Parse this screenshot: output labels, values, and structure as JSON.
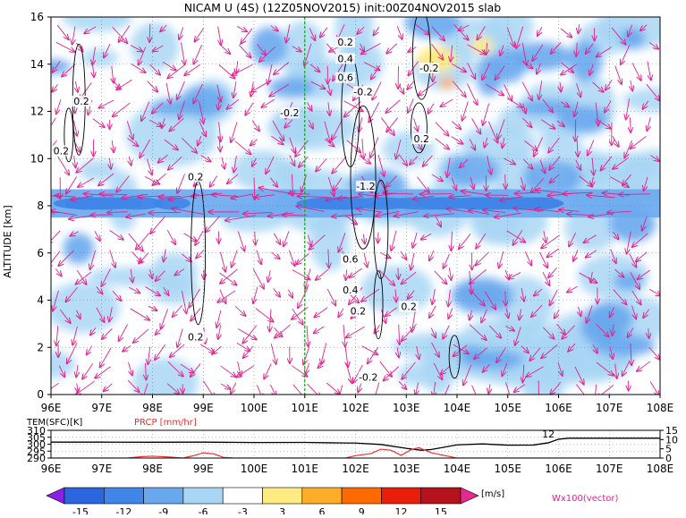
{
  "title": "NICAM U (4S) (12Z05NOV2015) init:00Z04NOV2015 slab",
  "chart_data": [
    {
      "type": "heatmap",
      "title": "NICAM U (4S) (12Z05NOV2015) init:00Z04NOV2015 slab",
      "xlabel": "",
      "ylabel": "ALTITUDE [km]",
      "x_ticks": [
        "96E",
        "97E",
        "98E",
        "99E",
        "100E",
        "101E",
        "102E",
        "103E",
        "104E",
        "105E",
        "106E",
        "107E",
        "108E"
      ],
      "x_values": [
        96,
        97,
        98,
        99,
        100,
        101,
        102,
        103,
        104,
        105,
        106,
        107,
        108
      ],
      "y_ticks": [
        "0",
        "2",
        "4",
        "6",
        "8",
        "10",
        "12",
        "14",
        "16"
      ],
      "y_values": [
        0,
        2,
        4,
        6,
        8,
        10,
        12,
        14,
        16
      ],
      "xlim": [
        96,
        108
      ],
      "ylim": [
        0,
        16
      ],
      "reference_line_lon": 101.0,
      "contour_labels": [
        {
          "text": "0.2",
          "x": 96.6,
          "y": 12.4
        },
        {
          "text": "0.2",
          "x": 96.2,
          "y": 10.3
        },
        {
          "text": "0.2",
          "x": 98.85,
          "y": 9.2
        },
        {
          "text": "0.2",
          "x": 98.85,
          "y": 2.4
        },
        {
          "text": "0.2",
          "x": 101.8,
          "y": 14.9
        },
        {
          "text": "0.4",
          "x": 101.8,
          "y": 14.2
        },
        {
          "text": "0.6",
          "x": 101.8,
          "y": 13.4
        },
        {
          "text": "-0.2",
          "x": 102.15,
          "y": 12.8
        },
        {
          "text": "-0.2",
          "x": 100.7,
          "y": 11.9
        },
        {
          "text": "-0.2",
          "x": 103.45,
          "y": 13.8
        },
        {
          "text": "0.2",
          "x": 103.3,
          "y": 10.8
        },
        {
          "text": "-1.2",
          "x": 102.2,
          "y": 8.8
        },
        {
          "text": "0.6",
          "x": 101.9,
          "y": 5.7
        },
        {
          "text": "0.4",
          "x": 101.9,
          "y": 4.4
        },
        {
          "text": "0.2",
          "x": 102.05,
          "y": 3.5
        },
        {
          "text": "0.2",
          "x": 103.05,
          "y": 3.7
        },
        {
          "text": "-0.2",
          "x": 102.25,
          "y": 0.7
        }
      ],
      "colorbar": {
        "label": "[m/s]",
        "tick_labels": [
          "-15",
          "-12",
          "-9",
          "-6",
          "-3",
          "3",
          "6",
          "9",
          "12",
          "15"
        ],
        "levels": [
          -15,
          -12,
          -9,
          -6,
          -3,
          3,
          6,
          9,
          12,
          15
        ],
        "colors": [
          "#8c1ee6",
          "#2b66e0",
          "#3f86e8",
          "#6aa8ee",
          "#a9d6f5",
          "#ffffff",
          "#ffeb82",
          "#ffad28",
          "#ff6a00",
          "#e81e0a",
          "#b4121c",
          "#e62890"
        ]
      },
      "vector_label": "Wx100(vector)",
      "vector_color": "#e0238c"
    },
    {
      "type": "line",
      "left_label": "TEM(SFC)[K]",
      "right_label": "PRCP [mm/hr]",
      "xlim": [
        96,
        108
      ],
      "left_ticks": [
        "310",
        "305",
        "300",
        "295",
        "290"
      ],
      "left_values": [
        310,
        305,
        300,
        295,
        290
      ],
      "right_ticks": [
        "15",
        "10",
        "5",
        "0"
      ],
      "right_values": [
        15,
        10,
        5,
        0
      ],
      "series": [
        {
          "name": "TEM(SFC)[K]",
          "color": "#000000",
          "x": [
            96.0,
            97.0,
            98.0,
            99.0,
            100.0,
            101.0,
            101.5,
            102.0,
            102.5,
            103.0,
            103.3,
            103.5,
            104.0,
            104.5,
            105.0,
            105.5,
            105.8,
            106.0,
            106.2,
            108.0
          ],
          "values": [
            301.5,
            301.5,
            301.4,
            301.5,
            301.2,
            301.3,
            301.0,
            300.8,
            299.8,
            297.0,
            295.6,
            296.2,
            299.5,
            300.2,
            299.3,
            299.4,
            301.0,
            303.6,
            304.3,
            304.3
          ]
        },
        {
          "name": "PRCP [mm/hr]",
          "color": "#e83030",
          "x": [
            96.0,
            97.5,
            97.8,
            98.0,
            98.3,
            98.6,
            98.8,
            99.0,
            99.2,
            99.4,
            99.6,
            101.8,
            102.0,
            102.3,
            102.5,
            102.7,
            102.9,
            103.1,
            103.25,
            103.5,
            104.0,
            108.0
          ],
          "values": [
            0,
            0,
            0.8,
            1.0,
            0.6,
            0,
            1.2,
            2.8,
            2.3,
            0.4,
            0,
            0,
            1.3,
            2.4,
            4.8,
            4.2,
            1.5,
            4.6,
            5.6,
            2.8,
            0,
            0
          ]
        }
      ],
      "annotations": [
        {
          "text": "12",
          "x": 105.8,
          "y": 13
        }
      ]
    }
  ]
}
